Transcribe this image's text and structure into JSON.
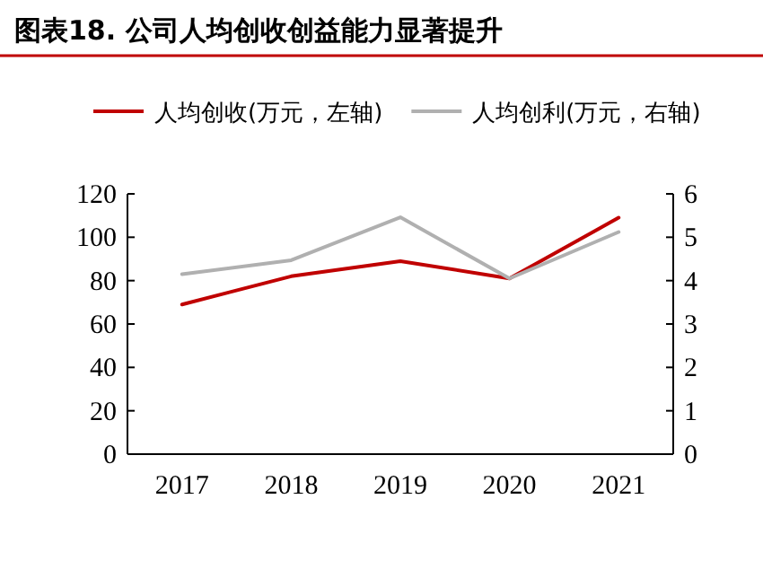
{
  "chart_data": {
    "type": "line",
    "title": "图表18. 公司人均创收创益能力显著提升",
    "categories": [
      "2017",
      "2018",
      "2019",
      "2020",
      "2021"
    ],
    "series": [
      {
        "name": "人均创收(万元，左轴)",
        "color": "#c00000",
        "values": [
          69,
          82,
          89,
          81,
          109
        ]
      },
      {
        "name": "人均创利(万元，右轴)",
        "color": "#b0b0b0",
        "values": [
          4.15,
          4.47,
          5.46,
          4.05,
          5.12
        ],
        "axis": "y2"
      }
    ],
    "ylim": [
      0,
      120
    ],
    "yticks": [
      0,
      20,
      40,
      60,
      80,
      100,
      120
    ],
    "y2lim": [
      0,
      6
    ],
    "y2ticks": [
      0,
      1,
      2,
      3,
      4,
      5,
      6
    ],
    "legend": "top"
  }
}
